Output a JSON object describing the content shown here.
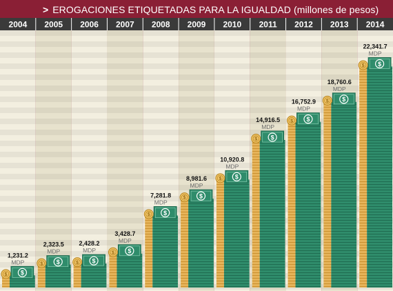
{
  "title_marker": ">",
  "title": "EROGACIONES ETIQUETADAS PARA LA IGUALDAD (millones de pesos)",
  "colors": {
    "header_bg": "#8a1f35",
    "year_bar": "#3a3a3a",
    "band_light": "#f3efe0",
    "band_dark": "#e7e2cd",
    "stack_gold": "#e6b45a",
    "stack_green": "#2f8c6b",
    "bill_green": "#2f8c6b"
  },
  "icons": [
    "coin-icon",
    "dollar-bill-icon"
  ],
  "chart_data": {
    "type": "bar",
    "title": "EROGACIONES ETIQUETADAS PARA LA IGUALDAD (millones de pesos)",
    "categories": [
      "2004",
      "2005",
      "2006",
      "2007",
      "2008",
      "2009",
      "2010",
      "2011",
      "2012",
      "2013",
      "2014"
    ],
    "value_labels": [
      "1,231.2",
      "2,323.5",
      "2,428.2",
      "3,428.7",
      "7,281.8",
      "8,981.6",
      "10,920.8",
      "14,916.5",
      "16,752.9",
      "18,760.6",
      "22,341.7"
    ],
    "unit_label": "MDP",
    "series": [
      {
        "values": [
          1231.2,
          2323.5,
          2428.2,
          3428.7,
          7281.8,
          8981.6,
          10920.8,
          14916.5,
          16752.9,
          18760.6,
          22341.7
        ]
      }
    ],
    "ylim": [
      0,
      26000
    ],
    "grid": false
  }
}
